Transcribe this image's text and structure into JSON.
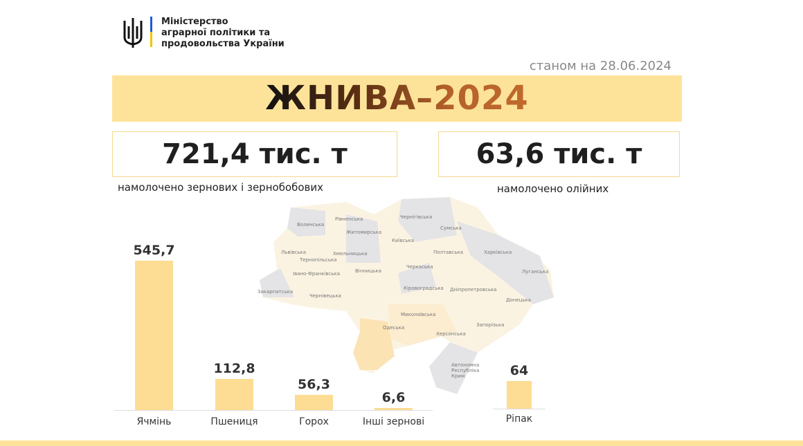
{
  "header": {
    "ministry_lines": [
      "Міністерство",
      "аграрної політики та",
      "продовольства України"
    ],
    "date": "станом на 28.06.2024"
  },
  "title": "ЖНИВА–2024",
  "stats": [
    {
      "value": "721,4 тис. т",
      "caption": "намолочено зернових і зернобобових"
    },
    {
      "value": "63,6 тис. т",
      "caption": "намолочено олійних"
    }
  ],
  "colors": {
    "accent": "#fde39a",
    "bar": "#fddc93",
    "title_end": "#c06a2d"
  },
  "chart_data": [
    {
      "type": "bar",
      "categories": [
        "Ячмінь",
        "Пшениця",
        "Горох",
        "Інші зернові"
      ],
      "values": [
        545.7,
        112.8,
        56.3,
        6.6
      ],
      "labels": [
        "545,7",
        "112,8",
        "56,3",
        "6,6"
      ]
    },
    {
      "type": "bar",
      "categories": [
        "Ріпак"
      ],
      "values": [
        64
      ],
      "labels": [
        "64"
      ]
    }
  ],
  "map": {
    "regions": [
      "Волинська",
      "Рівненська",
      "Житомирська",
      "Чернігівська",
      "Сумська",
      "Київська",
      "Львівська",
      "Хмельницька",
      "Тернопільська",
      "Полтавська",
      "Харківська",
      "Луганська",
      "Вінницька",
      "Черкаська",
      "Івано-Франківська",
      "Закарпатська",
      "Чернівецька",
      "Кіровоградська",
      "Дніпропетровська",
      "Донецька",
      "Миколаївська",
      "Одеська",
      "Запорізька",
      "Херсонська",
      "Автономна Республіка Крим"
    ]
  }
}
